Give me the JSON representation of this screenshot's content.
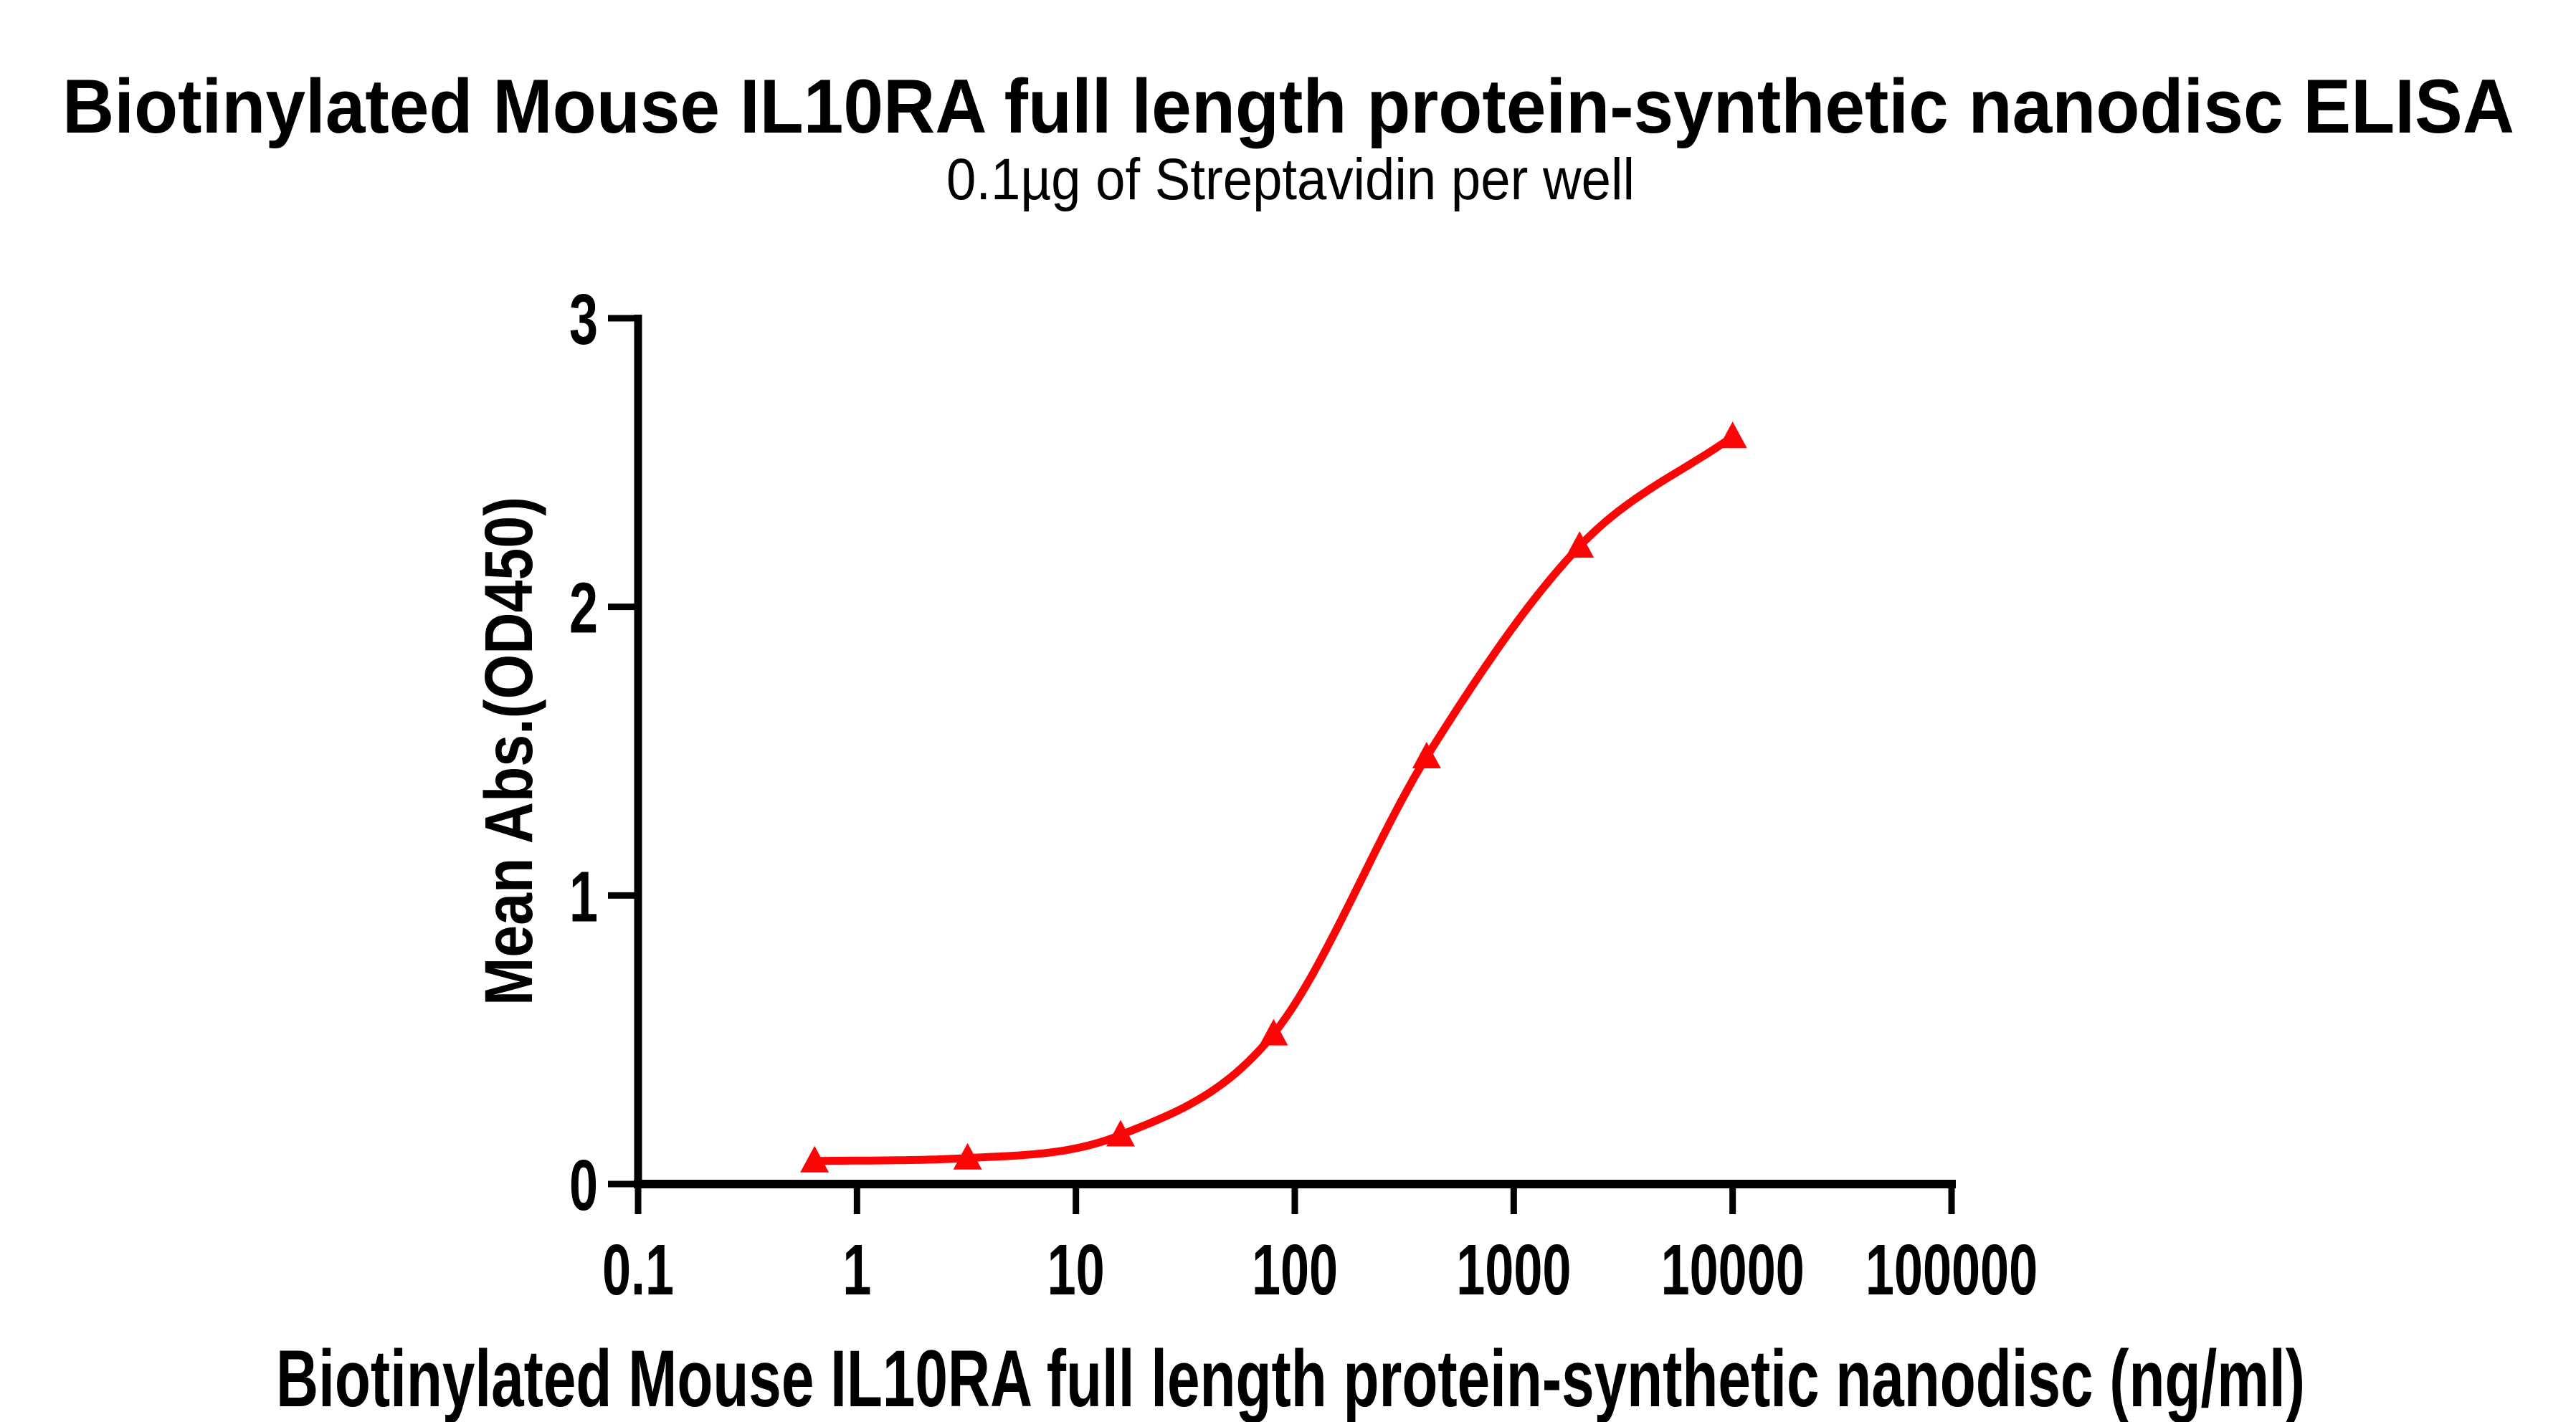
{
  "colors": {
    "curve": "#FB0606",
    "axis": "#000000",
    "text": "#000000",
    "background": "#FFFFFF"
  },
  "chart_data": {
    "type": "scatter",
    "title": "Biotinylated Mouse IL10RA full length protein-synthetic nanodisc ELISA",
    "subtitle": "0.1µg of Streptavidin per well",
    "xlabel": "Biotinylated Mouse IL10RA full length protein-synthetic nanodisc (ng/ml)",
    "ylabel": "Mean Abs.(OD450)",
    "x_scale": "log10",
    "xlim": [
      0.1,
      100000
    ],
    "ylim": [
      0,
      3
    ],
    "x_ticks": [
      "0.1",
      "1",
      "10",
      "100",
      "1000",
      "10000",
      "100000"
    ],
    "y_ticks": [
      "0",
      "1",
      "2",
      "3"
    ],
    "grid": false,
    "legend": false,
    "series": [
      {
        "marker": "filled-triangle-up",
        "color": "#FB0606",
        "curve": "4PL sigmoidal fit",
        "x": [
          0.64,
          3.2,
          16,
          80,
          400,
          2000,
          10000
        ],
        "y": [
          0.08,
          0.09,
          0.17,
          0.52,
          1.48,
          2.21,
          2.59
        ]
      }
    ]
  }
}
